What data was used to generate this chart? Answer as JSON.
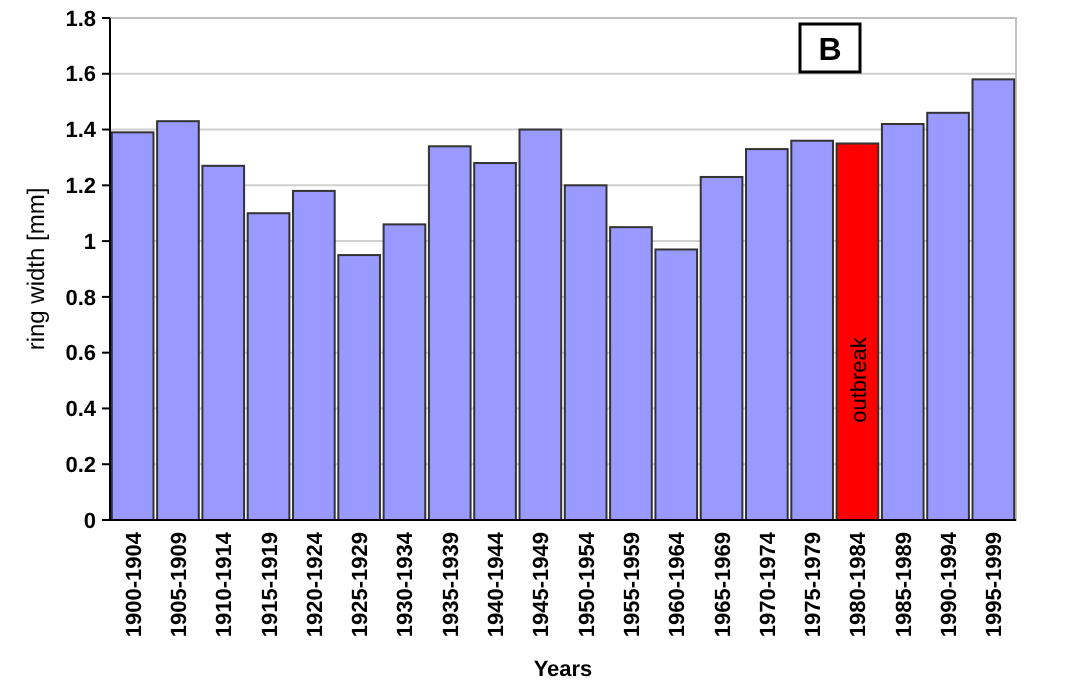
{
  "chart_data": {
    "type": "bar",
    "title": "B",
    "xlabel": "Years",
    "ylabel": "ring width  [mm]",
    "categories": [
      "1900-1904",
      "1905-1909",
      "1910-1914",
      "1915-1919",
      "1920-1924",
      "1925-1929",
      "1930-1934",
      "1935-1939",
      "1940-1944",
      "1945-1949",
      "1950-1954",
      "1955-1959",
      "1960-1964",
      "1965-1969",
      "1970-1974",
      "1975-1979",
      "1980-1984",
      "1985-1989",
      "1990-1994",
      "1995-1999"
    ],
    "values": [
      1.39,
      1.43,
      1.27,
      1.1,
      1.18,
      0.95,
      1.06,
      1.34,
      1.28,
      1.4,
      1.2,
      1.05,
      0.97,
      1.23,
      1.33,
      1.36,
      1.35,
      1.42,
      1.46,
      1.58
    ],
    "colors": [
      "#9999ff",
      "#9999ff",
      "#9999ff",
      "#9999ff",
      "#9999ff",
      "#9999ff",
      "#9999ff",
      "#9999ff",
      "#9999ff",
      "#9999ff",
      "#9999ff",
      "#9999ff",
      "#9999ff",
      "#9999ff",
      "#9999ff",
      "#9999ff",
      "#ff0000",
      "#9999ff",
      "#9999ff",
      "#9999ff"
    ],
    "annotations": [
      "outbreak"
    ],
    "ylim": [
      0,
      1.8
    ],
    "yticks": [
      0,
      0.2,
      0.4,
      0.6,
      0.8,
      1,
      1.2,
      1.4,
      1.6,
      1.8
    ],
    "grid": "y"
  }
}
